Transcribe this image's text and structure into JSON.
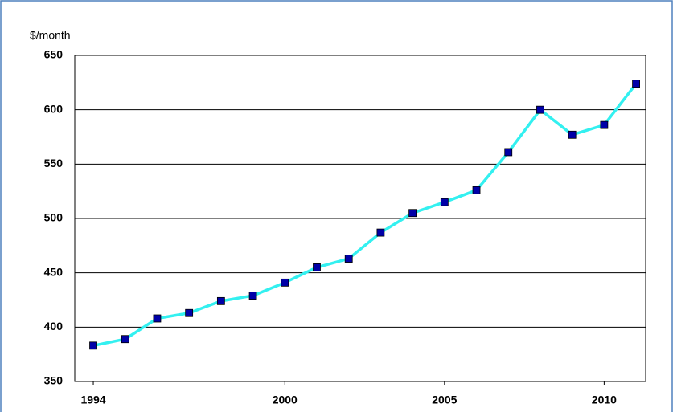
{
  "chart_data": {
    "type": "line",
    "y_axis_label": "$/month",
    "x": [
      1994,
      1995,
      1996,
      1997,
      1998,
      1999,
      2000,
      2001,
      2002,
      2003,
      2004,
      2005,
      2006,
      2007,
      2008,
      2009,
      2010,
      2011
    ],
    "series": [
      {
        "color": "#33f0f0",
        "marker_color": "#0000a8",
        "values": [
          383,
          389,
          408,
          413,
          424,
          429,
          441,
          455,
          463,
          487,
          505,
          515,
          526,
          561,
          600,
          577,
          586,
          624
        ]
      }
    ],
    "xlim": [
      1993.42,
      2011.3
    ],
    "xticks": [
      1994,
      2000,
      2005,
      2010
    ],
    "ylim": [
      350,
      650
    ],
    "yticks": [
      350,
      400,
      450,
      500,
      550,
      600,
      650
    ],
    "grid": true
  }
}
